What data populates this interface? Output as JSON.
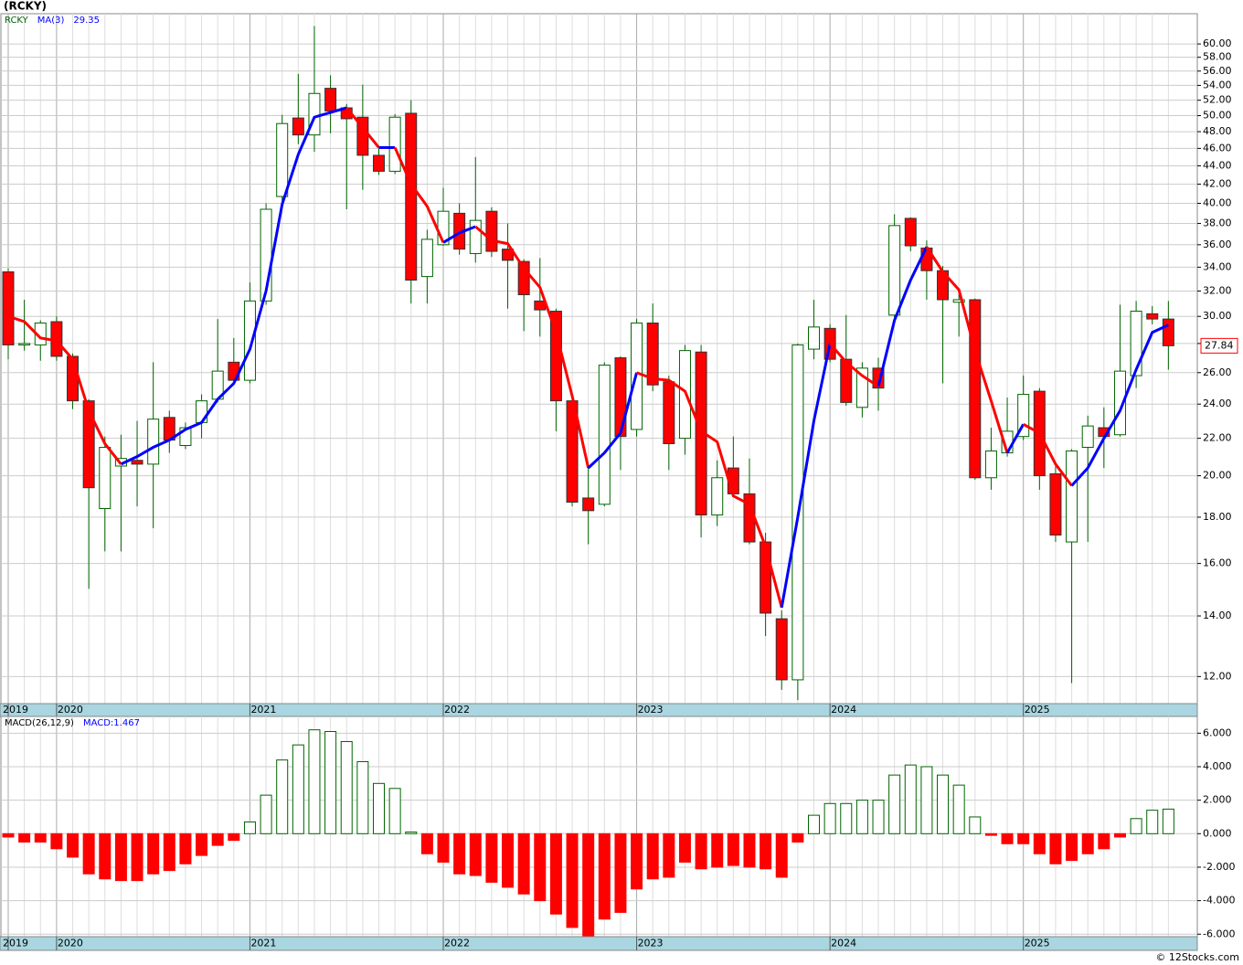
{
  "chart_data": [
    {
      "type": "candlestick",
      "title": "(RCKY)",
      "symbol": "RCKY",
      "log": true,
      "grid": true,
      "up_color": "#006400",
      "down_color": "#ff0000",
      "wick_color": "#006400",
      "categories": [
        "2019",
        null,
        null,
        "2020",
        null,
        null,
        null,
        null,
        null,
        null,
        null,
        null,
        null,
        null,
        null,
        "2021",
        null,
        null,
        null,
        null,
        null,
        null,
        null,
        null,
        null,
        null,
        null,
        "2022",
        null,
        null,
        null,
        null,
        null,
        null,
        null,
        null,
        null,
        null,
        null,
        "2023",
        null,
        null,
        null,
        null,
        null,
        null,
        null,
        null,
        null,
        null,
        null,
        "2024",
        null,
        null,
        null,
        null,
        null,
        null,
        null,
        null,
        null,
        null,
        null,
        "2025",
        null,
        null,
        null,
        null,
        null,
        null,
        null,
        null,
        null
      ],
      "open": [
        33.6,
        27.9,
        27.9,
        29.6,
        27.1,
        24.2,
        18.4,
        20.5,
        20.8,
        20.6,
        23.2,
        21.6,
        22.9,
        24.3,
        26.7,
        25.5,
        31.2,
        40.7,
        49.7,
        47.6,
        53.6,
        51.0,
        49.8,
        45.2,
        43.4,
        50.3,
        33.2,
        36.0,
        39.0,
        35.2,
        39.2,
        35.6,
        34.5,
        31.2,
        30.4,
        24.2,
        18.9,
        18.6,
        27.0,
        22.5,
        29.5,
        25.4,
        22.0,
        27.4,
        18.1,
        20.4,
        19.1,
        16.9,
        13.9,
        11.9,
        27.6,
        29.1,
        26.9,
        23.8,
        26.3,
        30.1,
        38.5,
        35.7,
        33.7,
        31.1,
        31.3,
        19.9,
        21.2,
        22.1,
        24.8,
        20.1,
        16.9,
        21.5,
        22.6,
        22.2,
        25.8,
        30.2,
        29.8
      ],
      "high": [
        33.9,
        31.3,
        29.7,
        30.0,
        27.3,
        24.3,
        22.1,
        22.2,
        23.0,
        26.7,
        23.6,
        22.9,
        24.6,
        29.8,
        28.4,
        32.7,
        40.0,
        50.1,
        55.6,
        62.8,
        55.4,
        51.5,
        54.1,
        46.0,
        50.2,
        52.0,
        37.4,
        41.6,
        40.0,
        45.0,
        39.6,
        38.0,
        34.7,
        34.8,
        30.6,
        24.4,
        20.4,
        26.7,
        27.1,
        29.8,
        31.0,
        25.8,
        27.9,
        27.9,
        20.8,
        22.1,
        20.9,
        17.3,
        14.2,
        28.0,
        31.3,
        29.4,
        30.1,
        26.7,
        27.0,
        38.9,
        38.6,
        36.4,
        34.1,
        31.8,
        31.4,
        22.6,
        24.4,
        25.8,
        25.0,
        20.5,
        21.4,
        23.3,
        23.8,
        30.9,
        31.2,
        30.8,
        31.2
      ],
      "low": [
        26.9,
        27.5,
        26.8,
        26.8,
        23.7,
        15.0,
        16.5,
        16.5,
        18.5,
        17.5,
        21.2,
        21.4,
        22.0,
        24.1,
        25.4,
        25.3,
        30.9,
        40.2,
        46.5,
        45.6,
        47.8,
        39.4,
        41.4,
        43.0,
        43.1,
        31.0,
        31.0,
        35.9,
        35.1,
        34.4,
        34.9,
        30.6,
        28.9,
        28.5,
        22.4,
        18.5,
        16.8,
        18.5,
        20.3,
        22.1,
        24.8,
        20.3,
        21.1,
        17.1,
        17.6,
        19.0,
        16.8,
        13.3,
        11.6,
        11.3,
        26.9,
        26.7,
        23.9,
        23.2,
        23.6,
        29.9,
        35.4,
        31.3,
        25.3,
        28.5,
        19.8,
        19.3,
        21.0,
        21.9,
        19.3,
        16.9,
        11.8,
        16.9,
        20.4,
        22.1,
        25.0,
        29.4,
        26.2
      ],
      "close": [
        27.9,
        28.0,
        29.5,
        27.1,
        24.2,
        19.4,
        21.5,
        20.9,
        20.6,
        23.1,
        21.9,
        22.6,
        24.2,
        26.1,
        25.5,
        31.2,
        39.4,
        49.0,
        47.6,
        52.9,
        50.6,
        49.6,
        45.2,
        43.4,
        49.8,
        32.9,
        36.5,
        39.2,
        35.6,
        38.3,
        35.4,
        34.6,
        31.7,
        30.5,
        24.2,
        18.7,
        18.3,
        26.5,
        22.1,
        29.5,
        25.2,
        21.7,
        27.5,
        18.1,
        19.9,
        19.1,
        16.9,
        14.1,
        11.9,
        27.9,
        29.2,
        26.9,
        24.1,
        26.3,
        25.0,
        37.8,
        35.9,
        33.7,
        31.3,
        31.3,
        19.9,
        21.3,
        22.4,
        24.6,
        20.0,
        17.2,
        21.3,
        22.7,
        22.1,
        26.1,
        30.4,
        29.8,
        27.84
      ],
      "ma": {
        "name": "MA(3)",
        "up_color": "#0000ff",
        "down_color": "#ff0000",
        "values": [
          30.0,
          29.6,
          28.4,
          28.2,
          26.9,
          23.6,
          21.7,
          20.6,
          21.0,
          21.5,
          21.9,
          22.5,
          22.9,
          24.3,
          25.3,
          27.6,
          32.0,
          39.9,
          45.3,
          49.8,
          50.4,
          51.0,
          48.5,
          46.1,
          46.1,
          42.0,
          39.7,
          36.2,
          37.1,
          37.7,
          36.4,
          36.1,
          33.9,
          32.3,
          28.8,
          24.5,
          20.4,
          21.2,
          22.3,
          26.0,
          25.6,
          25.5,
          24.8,
          22.4,
          21.8,
          19.0,
          18.6,
          16.7,
          14.3,
          18.0,
          23.0,
          28.0,
          26.7,
          25.8,
          25.1,
          29.7,
          32.9,
          35.8,
          33.6,
          32.1,
          27.5,
          24.2,
          21.2,
          22.8,
          22.3,
          20.6,
          19.5,
          20.4,
          22.0,
          23.6,
          26.2,
          28.8,
          29.35
        ]
      },
      "ylim": [
        11.2,
        64.8
      ],
      "yticks": [
        {
          "value": 60,
          "label": "60.00"
        },
        {
          "value": 58,
          "label": "58.00"
        },
        {
          "value": 56,
          "label": "56.00"
        },
        {
          "value": 54,
          "label": "54.00"
        },
        {
          "value": 52,
          "label": "52.00"
        },
        {
          "value": 50,
          "label": "50.00"
        },
        {
          "value": 48,
          "label": "48.00"
        },
        {
          "value": 46,
          "label": "46.00"
        },
        {
          "value": 44,
          "label": "44.00"
        },
        {
          "value": 42,
          "label": "42.00"
        },
        {
          "value": 40,
          "label": "40.00"
        },
        {
          "value": 38,
          "label": "38.00"
        },
        {
          "value": 36,
          "label": "36.00"
        },
        {
          "value": 34,
          "label": "34.00"
        },
        {
          "value": 32,
          "label": "32.00"
        },
        {
          "value": 30,
          "label": "30.00"
        },
        {
          "value": 28,
          "label": "28.00"
        },
        {
          "value": 26,
          "label": "26.00"
        },
        {
          "value": 24,
          "label": "24.00"
        },
        {
          "value": 22,
          "label": "22.00"
        },
        {
          "value": 20,
          "label": "20.00"
        },
        {
          "value": 18,
          "label": "18.00"
        },
        {
          "value": 16,
          "label": "16.00"
        },
        {
          "value": 14,
          "label": "14.00"
        },
        {
          "value": 12,
          "label": "12.00"
        }
      ]
    },
    {
      "type": "bar",
      "name": "MACD(26,12,9)",
      "legend": "MACD:1.467",
      "up_color": "#006400",
      "down_color": "#ff0000",
      "grid": true,
      "values": [
        -0.2,
        -0.5,
        -0.5,
        -0.9,
        -1.4,
        -2.4,
        -2.7,
        -2.8,
        -2.8,
        -2.4,
        -2.2,
        -1.8,
        -1.3,
        -0.7,
        -0.4,
        0.7,
        2.3,
        4.4,
        5.3,
        6.2,
        6.1,
        5.5,
        4.3,
        3.0,
        2.7,
        0.1,
        -1.2,
        -1.7,
        -2.4,
        -2.5,
        -2.9,
        -3.2,
        -3.6,
        -4.0,
        -4.8,
        -5.6,
        -6.1,
        -5.1,
        -4.7,
        -3.3,
        -2.7,
        -2.6,
        -1.7,
        -2.1,
        -2.0,
        -1.9,
        -2.0,
        -2.1,
        -2.6,
        -0.5,
        1.1,
        1.8,
        1.8,
        2.0,
        2.0,
        3.5,
        4.1,
        4.0,
        3.5,
        2.9,
        1.0,
        -0.1,
        -0.6,
        -0.6,
        -1.2,
        -1.8,
        -1.6,
        -1.2,
        -0.9,
        -0.2,
        0.9,
        1.4,
        1.467
      ],
      "ylim": [
        -6.15,
        7.0
      ],
      "yticks": [
        {
          "value": 6,
          "label": "6.000"
        },
        {
          "value": 4,
          "label": "4.000"
        },
        {
          "value": 2,
          "label": "2.000"
        },
        {
          "value": 0,
          "label": "0.000"
        },
        {
          "value": -2,
          "label": "-2.000"
        },
        {
          "value": -4,
          "label": "-4.000"
        },
        {
          "value": -6,
          "label": "-6.000"
        }
      ]
    }
  ],
  "footer": "© 12Stocks.com"
}
